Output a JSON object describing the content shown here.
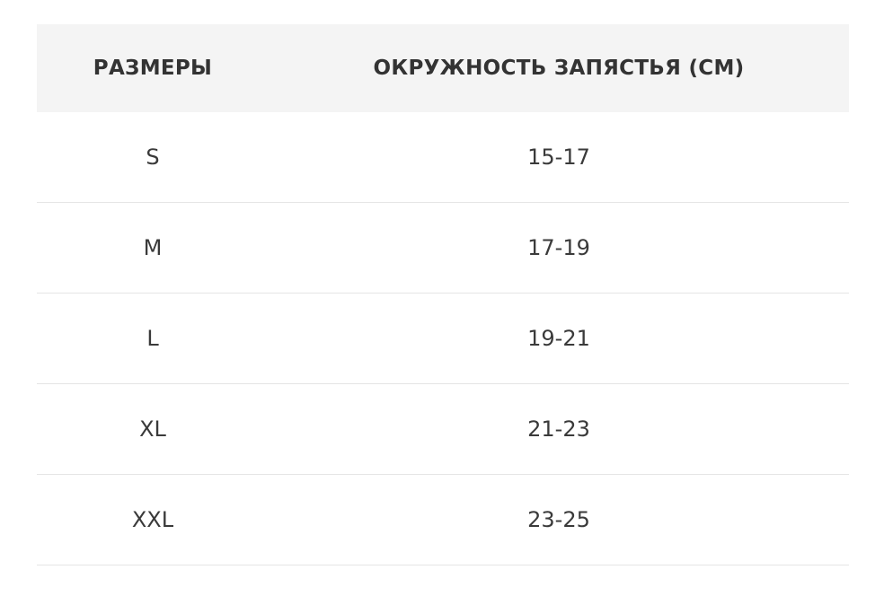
{
  "table": {
    "headers": [
      "РАЗМЕРЫ",
      "ОКРУЖНОСТЬ ЗАПЯСТЬЯ (СМ)"
    ],
    "rows": [
      [
        "S",
        "15-17"
      ],
      [
        "M",
        "17-19"
      ],
      [
        "L",
        "19-21"
      ],
      [
        "XL",
        "21-23"
      ],
      [
        "XXL",
        "23-25"
      ]
    ]
  },
  "colors": {
    "header_bg": "#f4f4f4",
    "text": "#333333",
    "divider": "#e5e5e5"
  }
}
